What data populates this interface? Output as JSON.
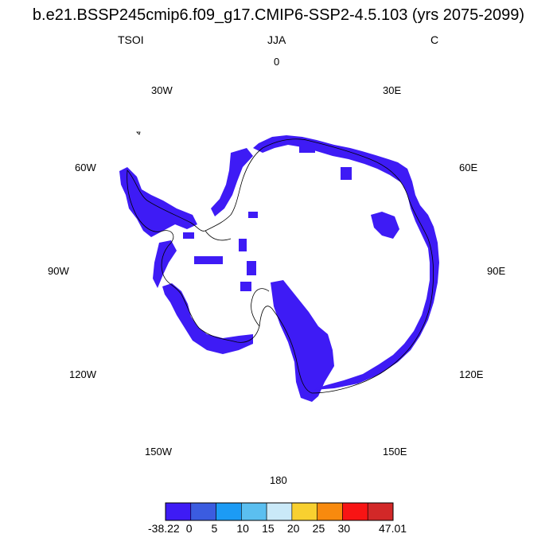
{
  "title": "b.e21.BSSP245cmip6.f09_g17.CMIP6-SSP2-4.5.103 (yrs 2075-2099)",
  "subtitle_left": "TSOI",
  "subtitle_center": "JJA",
  "subtitle_right": "C",
  "longitude_labels": {
    "lon_0": "0",
    "lon_30e": "30E",
    "lon_60e": "60E",
    "lon_90e": "90E",
    "lon_120e": "120E",
    "lon_150e": "150E",
    "lon_180": "180",
    "lon_150w": "150W",
    "lon_120w": "120W",
    "lon_90w": "90W",
    "lon_60w": "60W",
    "lon_30w": "30W"
  },
  "colorbar": {
    "colors": [
      "#3e1bf5",
      "#3b5ce0",
      "#1c9bf5",
      "#5bbff0",
      "#cae9f8",
      "#f8d030",
      "#f88a0e",
      "#f81414",
      "#d22828"
    ],
    "labels": [
      "-38.22",
      "0",
      "5",
      "10",
      "15",
      "20",
      "25",
      "30",
      "47.01"
    ]
  },
  "data_color": "#3e1bf5",
  "coastline_color": "#000000"
}
